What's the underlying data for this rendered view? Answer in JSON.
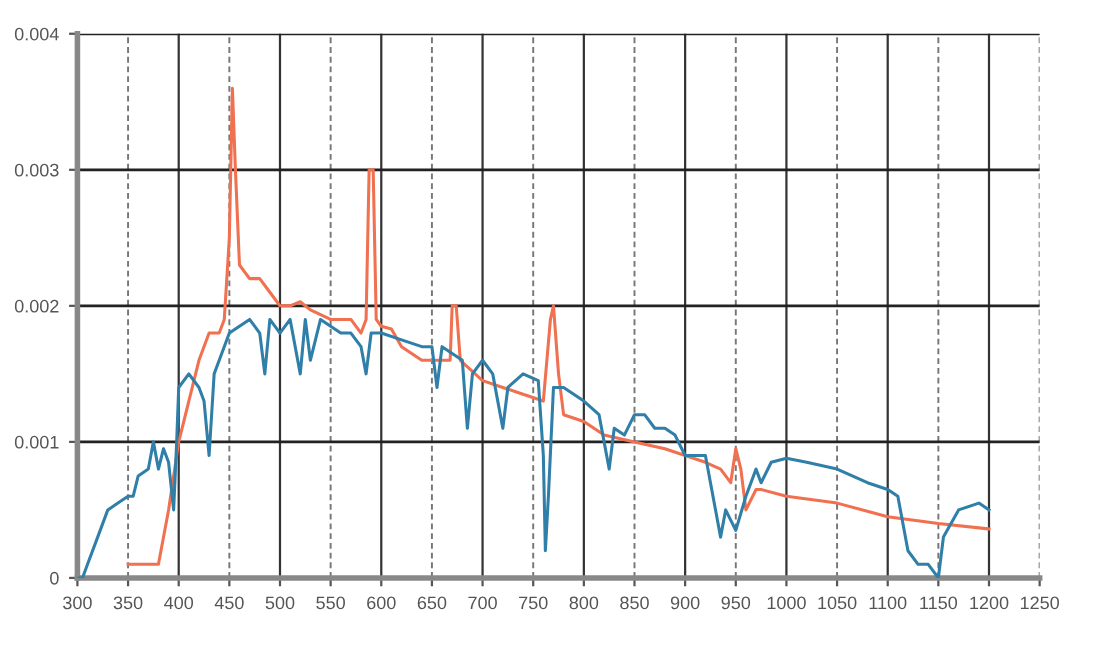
{
  "chart_data": {
    "type": "line",
    "xlim": [
      300,
      1250
    ],
    "xticks": [
      300,
      350,
      400,
      450,
      500,
      550,
      600,
      650,
      700,
      750,
      800,
      850,
      900,
      950,
      1000,
      1050,
      1100,
      1150,
      1200,
      1250
    ],
    "ylim": [
      0,
      0.004
    ],
    "yticks": [
      0,
      0.001,
      0.002,
      0.003,
      0.004
    ],
    "grid": true,
    "marker": "none",
    "line_style": "solid",
    "series": [
      {
        "color": "#f07050",
        "x": [
          350,
          360,
          365,
          370,
          380,
          390,
          400,
          410,
          420,
          430,
          440,
          445,
          450,
          453,
          456,
          460,
          470,
          480,
          490,
          500,
          510,
          520,
          530,
          550,
          570,
          580,
          585,
          588,
          592,
          595,
          600,
          610,
          620,
          640,
          655,
          668,
          670,
          674,
          678,
          700,
          720,
          740,
          760,
          767,
          770,
          775,
          780,
          800,
          820,
          850,
          880,
          900,
          920,
          935,
          945,
          950,
          955,
          960,
          970,
          975,
          1000,
          1050,
          1100,
          1150,
          1200
        ],
        "values": [
          0.0001,
          0.0001,
          0.0001,
          0.0001,
          0.0001,
          0.0005,
          0.001,
          0.0013,
          0.0016,
          0.0018,
          0.0018,
          0.0019,
          0.0025,
          0.0036,
          0.003,
          0.0023,
          0.0022,
          0.0022,
          0.0021,
          0.002,
          0.002,
          0.00203,
          0.00197,
          0.0019,
          0.0019,
          0.0018,
          0.0019,
          0.003,
          0.003,
          0.0019,
          0.00185,
          0.00183,
          0.0017,
          0.0016,
          0.0016,
          0.0016,
          0.002,
          0.002,
          0.0016,
          0.00145,
          0.0014,
          0.00135,
          0.0013,
          0.0019,
          0.002,
          0.0015,
          0.0012,
          0.00115,
          0.00105,
          0.001,
          0.00095,
          0.0009,
          0.00085,
          0.0008,
          0.0007,
          0.00095,
          0.0008,
          0.0005,
          0.00065,
          0.00065,
          0.0006,
          0.00055,
          0.00045,
          0.0004,
          0.00036
        ]
      },
      {
        "color": "#2f7fa8",
        "x": [
          300,
          305,
          310,
          320,
          330,
          340,
          350,
          355,
          360,
          370,
          375,
          380,
          385,
          390,
          395,
          398,
          400,
          410,
          420,
          425,
          430,
          435,
          440,
          450,
          460,
          470,
          480,
          485,
          490,
          500,
          510,
          520,
          525,
          530,
          540,
          550,
          560,
          570,
          580,
          585,
          590,
          600,
          620,
          640,
          650,
          655,
          660,
          680,
          685,
          690,
          700,
          710,
          720,
          725,
          740,
          755,
          760,
          762,
          765,
          770,
          780,
          800,
          815,
          820,
          825,
          830,
          840,
          850,
          860,
          870,
          880,
          890,
          900,
          910,
          920,
          935,
          940,
          950,
          960,
          970,
          975,
          985,
          1000,
          1020,
          1050,
          1080,
          1100,
          1110,
          1120,
          1130,
          1140,
          1150,
          1155,
          1170,
          1190,
          1200
        ],
        "values": [
          0,
          0,
          0.0001,
          0.0003,
          0.0005,
          0.00055,
          0.0006,
          0.0006,
          0.00075,
          0.0008,
          0.001,
          0.0008,
          0.00095,
          0.00085,
          0.0005,
          0.001,
          0.0014,
          0.0015,
          0.0014,
          0.0013,
          0.0009,
          0.0015,
          0.0016,
          0.0018,
          0.00185,
          0.0019,
          0.0018,
          0.0015,
          0.0019,
          0.0018,
          0.0019,
          0.0015,
          0.0019,
          0.0016,
          0.0019,
          0.00185,
          0.0018,
          0.0018,
          0.0017,
          0.0015,
          0.0018,
          0.0018,
          0.00175,
          0.0017,
          0.0017,
          0.0014,
          0.0017,
          0.0016,
          0.0011,
          0.0015,
          0.0016,
          0.0015,
          0.0011,
          0.0014,
          0.0015,
          0.00145,
          0.0009,
          0.0002,
          0.0006,
          0.0014,
          0.0014,
          0.0013,
          0.0012,
          0.001,
          0.0008,
          0.0011,
          0.00105,
          0.0012,
          0.0012,
          0.0011,
          0.0011,
          0.00105,
          0.0009,
          0.0009,
          0.0009,
          0.0003,
          0.0005,
          0.00035,
          0.0006,
          0.0008,
          0.0007,
          0.00085,
          0.00088,
          0.00085,
          0.0008,
          0.0007,
          0.00065,
          0.0006,
          0.0002,
          0.0001,
          0.0001,
          0.0,
          0.0003,
          0.0005,
          0.00055,
          0.0005
        ]
      }
    ]
  }
}
